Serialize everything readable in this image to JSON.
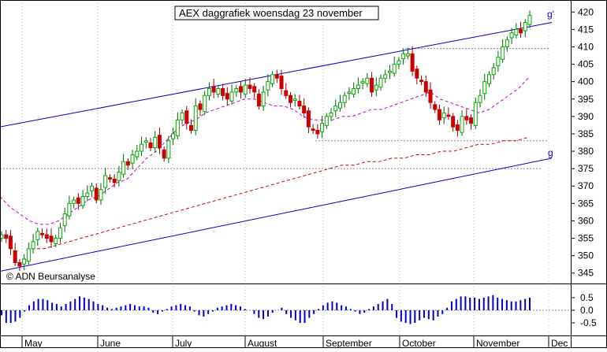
{
  "chart_data": [
    {
      "type": "candlestick",
      "title": "AEX daggrafiek woensdag 23 november",
      "credit": "© ADN Beursanalyse",
      "ylim": [
        342,
        423
      ],
      "yticks": [
        345,
        350,
        355,
        360,
        365,
        370,
        375,
        380,
        385,
        390,
        395,
        400,
        405,
        410,
        415,
        420
      ],
      "months": [
        "May",
        "June",
        "July",
        "August",
        "September",
        "October",
        "November",
        "Dec"
      ],
      "grid": true,
      "channel_labels": [
        "g'",
        "g"
      ],
      "colors": {
        "up": "#00aa00",
        "down": "#cc0000",
        "channel": "#0000cc",
        "ma_short": "#cc00cc",
        "ma_long": "#cc0000",
        "grid": "#bbbbbb"
      },
      "close": [
        356,
        355,
        352,
        348,
        347,
        349,
        352,
        354,
        357,
        356,
        355,
        354,
        355,
        358,
        362,
        365,
        366,
        365,
        367,
        368,
        370,
        366,
        369,
        373,
        372,
        371,
        374,
        377,
        376,
        379,
        380,
        382,
        383,
        381,
        384,
        381,
        378,
        383,
        385,
        389,
        391,
        388,
        386,
        393,
        392,
        396,
        398,
        397,
        398,
        396,
        395,
        397,
        398,
        397,
        399,
        398,
        397,
        393,
        397,
        400,
        402,
        401,
        398,
        396,
        394,
        395,
        393,
        391,
        387,
        386,
        385,
        388,
        390,
        391,
        393,
        394,
        396,
        397,
        398,
        399,
        400,
        401,
        397,
        399,
        401,
        402,
        403,
        405,
        406,
        408,
        408,
        403,
        401,
        400,
        397,
        394,
        392,
        389,
        391,
        390,
        387,
        386,
        390,
        389,
        388,
        394,
        396,
        400,
        402,
        404,
        407,
        410,
        412,
        414,
        415,
        414,
        417,
        419
      ],
      "channel_upper": [
        387,
        417
      ],
      "channel_lower": [
        345.5,
        378
      ],
      "ma_short": [
        367,
        364,
        362,
        360,
        359,
        359,
        360,
        362,
        364,
        366,
        367,
        369,
        371,
        372,
        375,
        378,
        380,
        383,
        386,
        388,
        389,
        391,
        392,
        393,
        394,
        395,
        395,
        394,
        393,
        393,
        392,
        390,
        389,
        389,
        389,
        390,
        390,
        391,
        392,
        392,
        393,
        394,
        395,
        396,
        397,
        395,
        394,
        393,
        392,
        391,
        392,
        394,
        396,
        398,
        401
      ],
      "ma_long": [
        352,
        352,
        353,
        354,
        355,
        356,
        357,
        358,
        359,
        360,
        361,
        362,
        363,
        364,
        365,
        366,
        367,
        368,
        369,
        370,
        371,
        372,
        373,
        374,
        375,
        376,
        376,
        377,
        377,
        378,
        378,
        379,
        379,
        380,
        380,
        381,
        382,
        382,
        383,
        383,
        384
      ],
      "support_levels": [
        409.5,
        383,
        375
      ],
      "oscillator": {
        "ylim": [
          -1,
          1
        ],
        "yticks": [
          0.5,
          0.0,
          -0.5
        ],
        "values": [
          -0.2,
          -0.5,
          -0.5,
          -0.45,
          -0.3,
          -0.05,
          0.2,
          0.35,
          0.45,
          0.45,
          0.4,
          0.3,
          0.25,
          0.15,
          0.25,
          0.35,
          0.45,
          0.55,
          0.5,
          0.45,
          0.35,
          0.25,
          0.2,
          0.1,
          0.05,
          0.1,
          0.15,
          0.2,
          0.25,
          0.2,
          0.15,
          0.15,
          0.1,
          -0.1,
          -0.15,
          -0.05,
          0.05,
          0.15,
          0.2,
          0.25,
          0.2,
          0.15,
          -0.05,
          -0.2,
          -0.25,
          -0.15,
          -0.05,
          0.1,
          0.15,
          0.2,
          0.25,
          0.2,
          0.15,
          0.05,
          0.0,
          -0.15,
          -0.3,
          -0.35,
          -0.25,
          -0.1,
          0.0,
          0.1,
          -0.15,
          -0.3,
          -0.4,
          -0.5,
          -0.5,
          -0.3,
          -0.15,
          0.05,
          0.2,
          0.3,
          0.35,
          0.3,
          0.2,
          0.15,
          0.05,
          -0.05,
          -0.15,
          -0.1,
          0.05,
          0.15,
          0.25,
          0.35,
          0.45,
          0.25,
          -0.3,
          -0.45,
          -0.5,
          -0.55,
          -0.5,
          -0.4,
          -0.3,
          -0.35,
          -0.4,
          -0.25,
          -0.15,
          0.1,
          0.35,
          0.45,
          0.55,
          0.55,
          0.5,
          0.5,
          0.45,
          0.5,
          0.55,
          0.6,
          0.5,
          0.45,
          0.4,
          0.35,
          0.35,
          0.4,
          0.45,
          0.5
        ]
      }
    }
  ]
}
